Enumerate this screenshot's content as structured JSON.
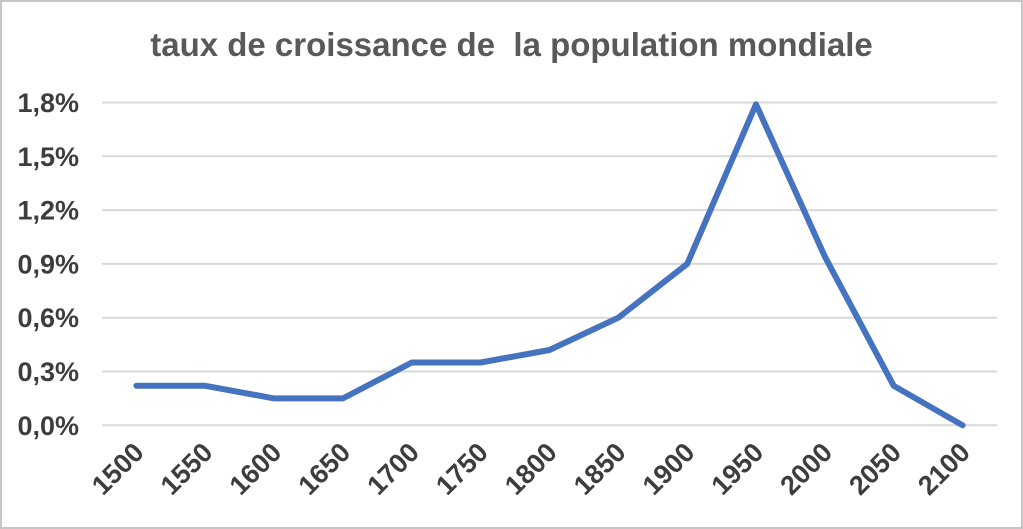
{
  "frame": {
    "background": "#ffffff",
    "border_color": "#c6c6c6"
  },
  "chart_data": {
    "type": "line",
    "title": "taux de croissance de  la population mondiale",
    "title_color": "#595959",
    "categories": [
      "1500",
      "1550",
      "1600",
      "1650",
      "1700",
      "1750",
      "1800",
      "1850",
      "1900",
      "1950",
      "2000",
      "2050",
      "2100"
    ],
    "values": [
      0.22,
      0.22,
      0.15,
      0.15,
      0.35,
      0.35,
      0.42,
      0.6,
      0.9,
      1.79,
      0.94,
      0.22,
      0.0
    ],
    "unit": "%",
    "xlabel": "",
    "ylabel": "",
    "ylim": [
      0,
      1.8
    ],
    "y_ticks": [
      {
        "value": 0.0,
        "label": "0,0%"
      },
      {
        "value": 0.3,
        "label": "0,3%"
      },
      {
        "value": 0.6,
        "label": "0,6%"
      },
      {
        "value": 0.9,
        "label": "0,9%"
      },
      {
        "value": 1.2,
        "label": "1,2%"
      },
      {
        "value": 1.5,
        "label": "1,5%"
      },
      {
        "value": 1.8,
        "label": "1,8%"
      }
    ],
    "grid": "horizontal",
    "gridline_color": "#d9d9d9",
    "legend": "none",
    "line_color": "#4573bf",
    "axis_label_color": "#3d3d3d",
    "x_tick_rotation_deg": 45
  }
}
